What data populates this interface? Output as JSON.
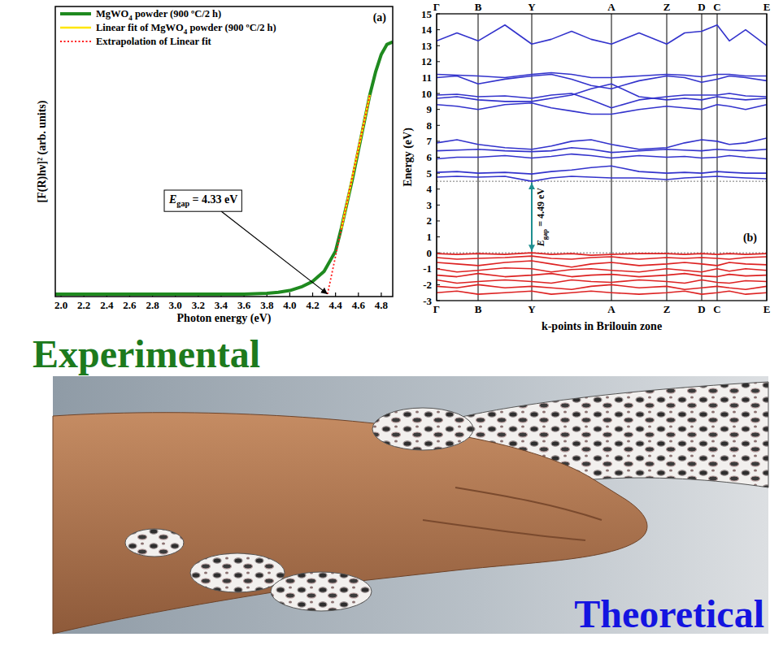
{
  "chart_data": [
    {
      "type": "line",
      "panel_label": "(a)",
      "x_label": "Photon energy (eV)",
      "y_label": "[F(R)hν]² (arb. units)",
      "xlim": [
        1.95,
        4.9
      ],
      "ylim": [
        -0.01,
        1.14
      ],
      "tick_labels": "x",
      "legend": "upper left",
      "xticks": [
        {
          "value": 2.0,
          "label": "2.0"
        },
        {
          "value": 2.2,
          "label": "2.2"
        },
        {
          "value": 2.4,
          "label": "2.4"
        },
        {
          "value": 2.6,
          "label": "2.6"
        },
        {
          "value": 2.8,
          "label": "2.8"
        },
        {
          "value": 3.0,
          "label": "3.0"
        },
        {
          "value": 3.2,
          "label": "3.2"
        },
        {
          "value": 3.4,
          "label": "3.4"
        },
        {
          "value": 3.6,
          "label": "3.6"
        },
        {
          "value": 3.8,
          "label": "3.8"
        },
        {
          "value": 4.0,
          "label": "4.0"
        },
        {
          "value": 4.2,
          "label": "4.2"
        },
        {
          "value": 4.4,
          "label": "4.4"
        },
        {
          "value": 4.6,
          "label": "4.6"
        },
        {
          "value": 4.8,
          "label": "4.8"
        }
      ],
      "series": [
        {
          "name": "MgWO4 powder (900 ºC/2 h)",
          "color": "#1f8a1f",
          "line_style": "solid",
          "x": [
            1.95,
            3.6,
            3.8,
            3.9,
            4.0,
            4.1,
            4.2,
            4.3,
            4.4,
            4.45,
            4.5,
            4.55,
            4.6,
            4.65,
            4.7,
            4.75,
            4.8,
            4.85,
            4.9
          ],
          "values": [
            0,
            0,
            0.003,
            0.007,
            0.014,
            0.028,
            0.05,
            0.09,
            0.17,
            0.26,
            0.36,
            0.46,
            0.57,
            0.68,
            0.79,
            0.88,
            0.95,
            0.99,
            1.0
          ]
        },
        {
          "name": "Linear fit of MgWO4 powder (900 ºC/2 h)",
          "color": "#ffe600",
          "line_style": "solid",
          "x": [
            4.45,
            4.7
          ],
          "values": [
            0.256,
            0.79
          ]
        },
        {
          "name": "Extrapolation of Linear fit",
          "color": "#ff1a1a",
          "line_style": "dotted",
          "x": [
            4.33,
            4.7
          ],
          "values": [
            0,
            0.79
          ]
        }
      ],
      "annotations": [
        {
          "symbol": "E",
          "subscript": "gap",
          "text": " = 4.33 eV",
          "x": 4.33,
          "y": 0
        }
      ]
    },
    {
      "type": "line",
      "panel_label": "(b)",
      "x_label": "k-points in Brilouin zone",
      "y_label": "Energy (eV)",
      "xlim": [
        0,
        4.06
      ],
      "ylim": [
        -3,
        15
      ],
      "xticks": [
        {
          "value": 0,
          "label": "Γ"
        },
        {
          "value": 0.51,
          "label": "B"
        },
        {
          "value": 1.17,
          "label": "Y"
        },
        {
          "value": 2.15,
          "label": "A"
        },
        {
          "value": 2.83,
          "label": "Z"
        },
        {
          "value": 3.26,
          "label": "D"
        },
        {
          "value": 3.45,
          "label": "C"
        },
        {
          "value": 4.06,
          "label": "E"
        }
      ],
      "yticks": [
        -3,
        -2,
        -1,
        0,
        1,
        2,
        3,
        4,
        5,
        6,
        7,
        8,
        9,
        10,
        11,
        12,
        13,
        14,
        15
      ],
      "x": [
        0,
        0.25,
        0.51,
        0.84,
        1.17,
        1.41,
        1.66,
        1.9,
        2.15,
        2.49,
        2.83,
        3.05,
        3.26,
        3.45,
        3.6,
        3.8,
        4.06
      ],
      "series": [
        {
          "color": "#3333cc",
          "values": [
            4.75,
            4.8,
            4.75,
            4.8,
            4.49,
            4.7,
            4.8,
            4.75,
            4.7,
            4.7,
            4.6,
            4.7,
            4.75,
            4.8,
            4.75,
            4.7,
            4.65
          ]
        },
        {
          "color": "#3333cc",
          "values": [
            5.05,
            5.1,
            5.0,
            5.05,
            4.95,
            5.1,
            5.2,
            5.35,
            5.45,
            5.1,
            5.0,
            5.05,
            5.0,
            5.1,
            5.05,
            5.0,
            5.0
          ]
        },
        {
          "color": "#3333cc",
          "values": [
            5.9,
            6.0,
            6.0,
            6.1,
            5.95,
            6.05,
            6.2,
            6.1,
            5.95,
            6.1,
            6.0,
            6.05,
            5.95,
            6.0,
            6.1,
            6.0,
            5.9
          ]
        },
        {
          "color": "#3333cc",
          "values": [
            6.4,
            6.45,
            6.5,
            6.4,
            6.35,
            6.4,
            6.6,
            6.5,
            6.3,
            6.4,
            6.5,
            6.45,
            6.4,
            6.5,
            6.45,
            6.4,
            6.5
          ]
        },
        {
          "color": "#3333cc",
          "values": [
            6.9,
            7.1,
            6.8,
            6.6,
            6.5,
            6.7,
            7.0,
            7.1,
            6.8,
            6.5,
            6.6,
            6.9,
            7.1,
            7.0,
            6.8,
            6.9,
            7.2
          ]
        },
        {
          "color": "#3333cc",
          "values": [
            9.3,
            9.2,
            9.0,
            9.3,
            9.4,
            9.1,
            8.9,
            8.7,
            8.7,
            9.0,
            9.2,
            9.1,
            9.0,
            9.3,
            9.2,
            9.0,
            9.3
          ]
        },
        {
          "color": "#3333cc",
          "values": [
            9.7,
            9.8,
            9.6,
            9.5,
            9.5,
            9.7,
            9.9,
            10.3,
            10.6,
            9.8,
            9.6,
            9.7,
            9.6,
            9.8,
            9.7,
            9.6,
            9.7
          ]
        },
        {
          "color": "#3333cc",
          "values": [
            9.9,
            9.95,
            9.8,
            9.85,
            9.7,
            9.9,
            10.0,
            9.6,
            9.1,
            9.6,
            9.8,
            9.9,
            9.9,
            9.9,
            10.0,
            9.85,
            9.8
          ]
        },
        {
          "color": "#3333cc",
          "values": [
            11.0,
            11.1,
            10.6,
            10.9,
            11.1,
            11.2,
            10.9,
            10.5,
            10.3,
            10.8,
            11.1,
            11.0,
            10.7,
            10.9,
            11.1,
            11.0,
            10.8
          ]
        },
        {
          "color": "#3333cc",
          "values": [
            11.2,
            11.15,
            11.1,
            11.0,
            11.2,
            11.3,
            11.2,
            11.0,
            11.0,
            11.1,
            11.2,
            11.15,
            11.05,
            11.2,
            11.2,
            11.1,
            11.1
          ]
        },
        {
          "color": "#3333cc",
          "values": [
            13.3,
            13.8,
            13.3,
            14.3,
            13.1,
            13.4,
            13.9,
            13.4,
            13.1,
            13.8,
            13.1,
            13.8,
            13.9,
            14.3,
            13.3,
            14.0,
            13.0
          ]
        },
        {
          "color": "#dd2222",
          "values": [
            -0.05,
            -0.1,
            -0.05,
            -0.1,
            0,
            -0.1,
            -0.05,
            -0.15,
            -0.1,
            -0.05,
            -0.05,
            -0.1,
            -0.05,
            -0.1,
            -0.05,
            -0.1,
            -0.05
          ]
        },
        {
          "color": "#dd2222",
          "values": [
            -0.3,
            -0.4,
            -0.35,
            -0.3,
            -0.2,
            -0.35,
            -0.4,
            -0.3,
            -0.25,
            -0.4,
            -0.3,
            -0.35,
            -0.3,
            -0.35,
            -0.4,
            -0.3,
            -0.25
          ]
        },
        {
          "color": "#dd2222",
          "values": [
            -0.6,
            -0.7,
            -0.8,
            -0.6,
            -0.5,
            -0.7,
            -0.9,
            -0.7,
            -0.6,
            -0.8,
            -0.7,
            -0.6,
            -0.7,
            -0.8,
            -0.6,
            -0.7,
            -0.75
          ]
        },
        {
          "color": "#dd2222",
          "values": [
            -1.0,
            -1.2,
            -1.1,
            -0.95,
            -1.0,
            -1.2,
            -1.05,
            -1.0,
            -1.1,
            -1.2,
            -1.0,
            -1.1,
            -1.2,
            -1.0,
            -1.15,
            -1.0,
            -1.1
          ]
        },
        {
          "color": "#dd2222",
          "values": [
            -1.4,
            -1.5,
            -1.3,
            -1.5,
            -1.4,
            -1.3,
            -1.5,
            -1.4,
            -1.35,
            -1.5,
            -1.4,
            -1.3,
            -1.45,
            -1.5,
            -1.35,
            -1.45,
            -1.4
          ]
        },
        {
          "color": "#dd2222",
          "values": [
            -1.7,
            -1.9,
            -1.8,
            -1.7,
            -1.8,
            -1.9,
            -1.7,
            -1.8,
            -1.85,
            -1.7,
            -1.8,
            -1.9,
            -1.7,
            -1.85,
            -1.9,
            -1.75,
            -1.8
          ]
        },
        {
          "color": "#dd2222",
          "values": [
            -2.1,
            -2.2,
            -2.0,
            -2.2,
            -2.1,
            -2.2,
            -2.3,
            -2.1,
            -2.0,
            -2.2,
            -2.1,
            -2.3,
            -2.2,
            -2.1,
            -2.2,
            -2.3,
            -2.1
          ]
        },
        {
          "color": "#dd2222",
          "values": [
            -2.5,
            -2.4,
            -2.6,
            -2.5,
            -2.4,
            -2.6,
            -2.5,
            -2.4,
            -2.5,
            -2.6,
            -2.5,
            -2.4,
            -2.6,
            -2.5,
            -2.4,
            -2.6,
            -2.5
          ]
        }
      ],
      "annotations": [
        {
          "symbol": "E",
          "subscript": "gap",
          "text": " = 4.49 eV",
          "x": 1.17,
          "y_from": 0,
          "y_to": 4.49
        }
      ]
    }
  ],
  "captions": {
    "experimental": "Experimental",
    "theoretical": "Theoretical"
  }
}
